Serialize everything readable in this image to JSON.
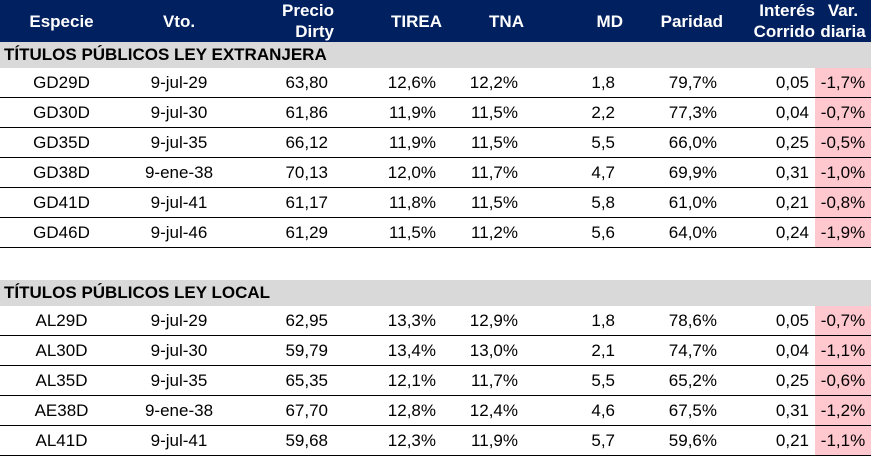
{
  "headers": {
    "especie": "Especie",
    "vto": "Vto.",
    "precio_1": "Precio",
    "precio_2": "Dirty",
    "tirea": "TIREA",
    "tna": "TNA",
    "md": "MD",
    "paridad": "Paridad",
    "interes_1": "Interés",
    "interes_2": "Corrido",
    "var_1": "Var.",
    "var_2": "diaria"
  },
  "sections": [
    {
      "title": "TÍTULOS PÚBLICOS LEY EXTRANJERA",
      "rows": [
        {
          "especie": "GD29D",
          "vto": "9-jul-29",
          "precio": "63,80",
          "tirea": "12,6%",
          "tna": "12,2%",
          "md": "1,8",
          "paridad": "79,7%",
          "interes": "0,05",
          "var": "-1,7%"
        },
        {
          "especie": "GD30D",
          "vto": "9-jul-30",
          "precio": "61,86",
          "tirea": "11,9%",
          "tna": "11,5%",
          "md": "2,2",
          "paridad": "77,3%",
          "interes": "0,04",
          "var": "-0,7%"
        },
        {
          "especie": "GD35D",
          "vto": "9-jul-35",
          "precio": "66,12",
          "tirea": "11,9%",
          "tna": "11,5%",
          "md": "5,5",
          "paridad": "66,0%",
          "interes": "0,25",
          "var": "-0,5%"
        },
        {
          "especie": "GD38D",
          "vto": "9-ene-38",
          "precio": "70,13",
          "tirea": "12,0%",
          "tna": "11,7%",
          "md": "4,7",
          "paridad": "69,9%",
          "interes": "0,31",
          "var": "-1,0%"
        },
        {
          "especie": "GD41D",
          "vto": "9-jul-41",
          "precio": "61,17",
          "tirea": "11,8%",
          "tna": "11,5%",
          "md": "5,8",
          "paridad": "61,0%",
          "interes": "0,21",
          "var": "-0,8%"
        },
        {
          "especie": "GD46D",
          "vto": "9-jul-46",
          "precio": "61,29",
          "tirea": "11,5%",
          "tna": "11,2%",
          "md": "5,6",
          "paridad": "64,0%",
          "interes": "0,24",
          "var": "-1,9%"
        }
      ]
    },
    {
      "title": "TÍTULOS PÚBLICOS LEY LOCAL",
      "rows": [
        {
          "especie": "AL29D",
          "vto": "9-jul-29",
          "precio": "62,95",
          "tirea": "13,3%",
          "tna": "12,9%",
          "md": "1,8",
          "paridad": "78,6%",
          "interes": "0,05",
          "var": "-0,7%"
        },
        {
          "especie": "AL30D",
          "vto": "9-jul-30",
          "precio": "59,79",
          "tirea": "13,4%",
          "tna": "13,0%",
          "md": "2,1",
          "paridad": "74,7%",
          "interes": "0,04",
          "var": "-1,1%"
        },
        {
          "especie": "AL35D",
          "vto": "9-jul-35",
          "precio": "65,35",
          "tirea": "12,1%",
          "tna": "11,7%",
          "md": "5,5",
          "paridad": "65,2%",
          "interes": "0,25",
          "var": "-0,6%"
        },
        {
          "especie": "AE38D",
          "vto": "9-ene-38",
          "precio": "67,70",
          "tirea": "12,8%",
          "tna": "12,4%",
          "md": "4,6",
          "paridad": "67,5%",
          "interes": "0,31",
          "var": "-1,2%"
        },
        {
          "especie": "AL41D",
          "vto": "9-jul-41",
          "precio": "59,68",
          "tirea": "12,3%",
          "tna": "11,9%",
          "md": "5,7",
          "paridad": "59,6%",
          "interes": "0,21",
          "var": "-1,1%"
        }
      ]
    }
  ]
}
